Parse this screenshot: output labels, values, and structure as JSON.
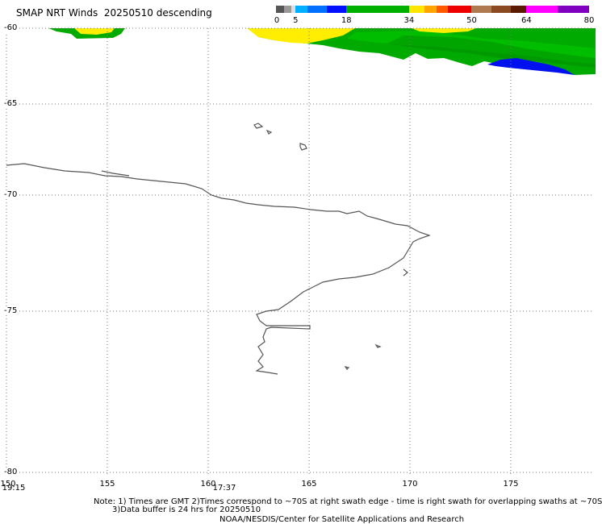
{
  "header": {
    "title": "SMAP NRT Winds  20250510 descending"
  },
  "colorbar": {
    "labels": [
      {
        "text": "0",
        "value": 0
      },
      {
        "text": "5",
        "value": 5
      },
      {
        "text": "18",
        "value": 18
      },
      {
        "text": "34",
        "value": 34
      },
      {
        "text": "50",
        "value": 50
      },
      {
        "text": "64",
        "value": 64
      },
      {
        "text": "80",
        "value": 80
      }
    ],
    "segments": [
      {
        "from": 0,
        "to": 2,
        "color": "#555555"
      },
      {
        "from": 2,
        "to": 4,
        "color": "#999999"
      },
      {
        "from": 4,
        "to": 5,
        "color": "#dddddd"
      },
      {
        "from": 5,
        "to": 8,
        "color": "#00b0ff"
      },
      {
        "from": 8,
        "to": 13,
        "color": "#0070ff"
      },
      {
        "from": 13,
        "to": 18,
        "color": "#0010ff"
      },
      {
        "from": 18,
        "to": 34,
        "color": "#00b000"
      },
      {
        "from": 34,
        "to": 38,
        "color": "#ffe600"
      },
      {
        "from": 38,
        "to": 41,
        "color": "#ffa500"
      },
      {
        "from": 41,
        "to": 44,
        "color": "#ff5a00"
      },
      {
        "from": 44,
        "to": 50,
        "color": "#ee0000"
      },
      {
        "from": 50,
        "to": 55,
        "color": "#b07a50"
      },
      {
        "from": 55,
        "to": 60,
        "color": "#8a4a20"
      },
      {
        "from": 60,
        "to": 64,
        "color": "#5a1a00"
      },
      {
        "from": 64,
        "to": 72,
        "color": "#ff00ff"
      },
      {
        "from": 72,
        "to": 80,
        "color": "#8000c0"
      }
    ]
  },
  "map": {
    "lat_labels": [
      {
        "text": "-60",
        "lat": -60
      },
      {
        "text": "-65",
        "lat": -65
      },
      {
        "text": "-70",
        "lat": -70
      },
      {
        "text": "-75",
        "lat": -75
      },
      {
        "text": "-80",
        "lat": -80
      }
    ],
    "lon_labels": [
      {
        "text": "150",
        "lon": 150
      },
      {
        "text": "155",
        "lon": 155
      },
      {
        "text": "160",
        "lon": 160
      },
      {
        "text": "165",
        "lon": 165
      },
      {
        "text": "170",
        "lon": 170
      },
      {
        "text": "175",
        "lon": 175
      }
    ],
    "swath_times": [
      {
        "text": "19:15",
        "lon": 150
      },
      {
        "text": "17:37",
        "lon": 160.8
      }
    ]
  },
  "footer": {
    "note_line1": "Note: 1) Times are GMT 2)Times correspond to ~70S at right swath edge - time is right swath for overlapping swaths at ~70S",
    "note_line2": "3)Data buffer is 24 hrs for 20250510",
    "credit": "NOAA/NESDIS/Center for Satellite Applications and Research"
  },
  "colors": {
    "coastline": "#555555",
    "grid": "#777777",
    "wind_green": "#00aa00",
    "wind_green_dark": "#008800",
    "wind_yellow": "#ffee00",
    "wind_blue": "#0010ee"
  }
}
